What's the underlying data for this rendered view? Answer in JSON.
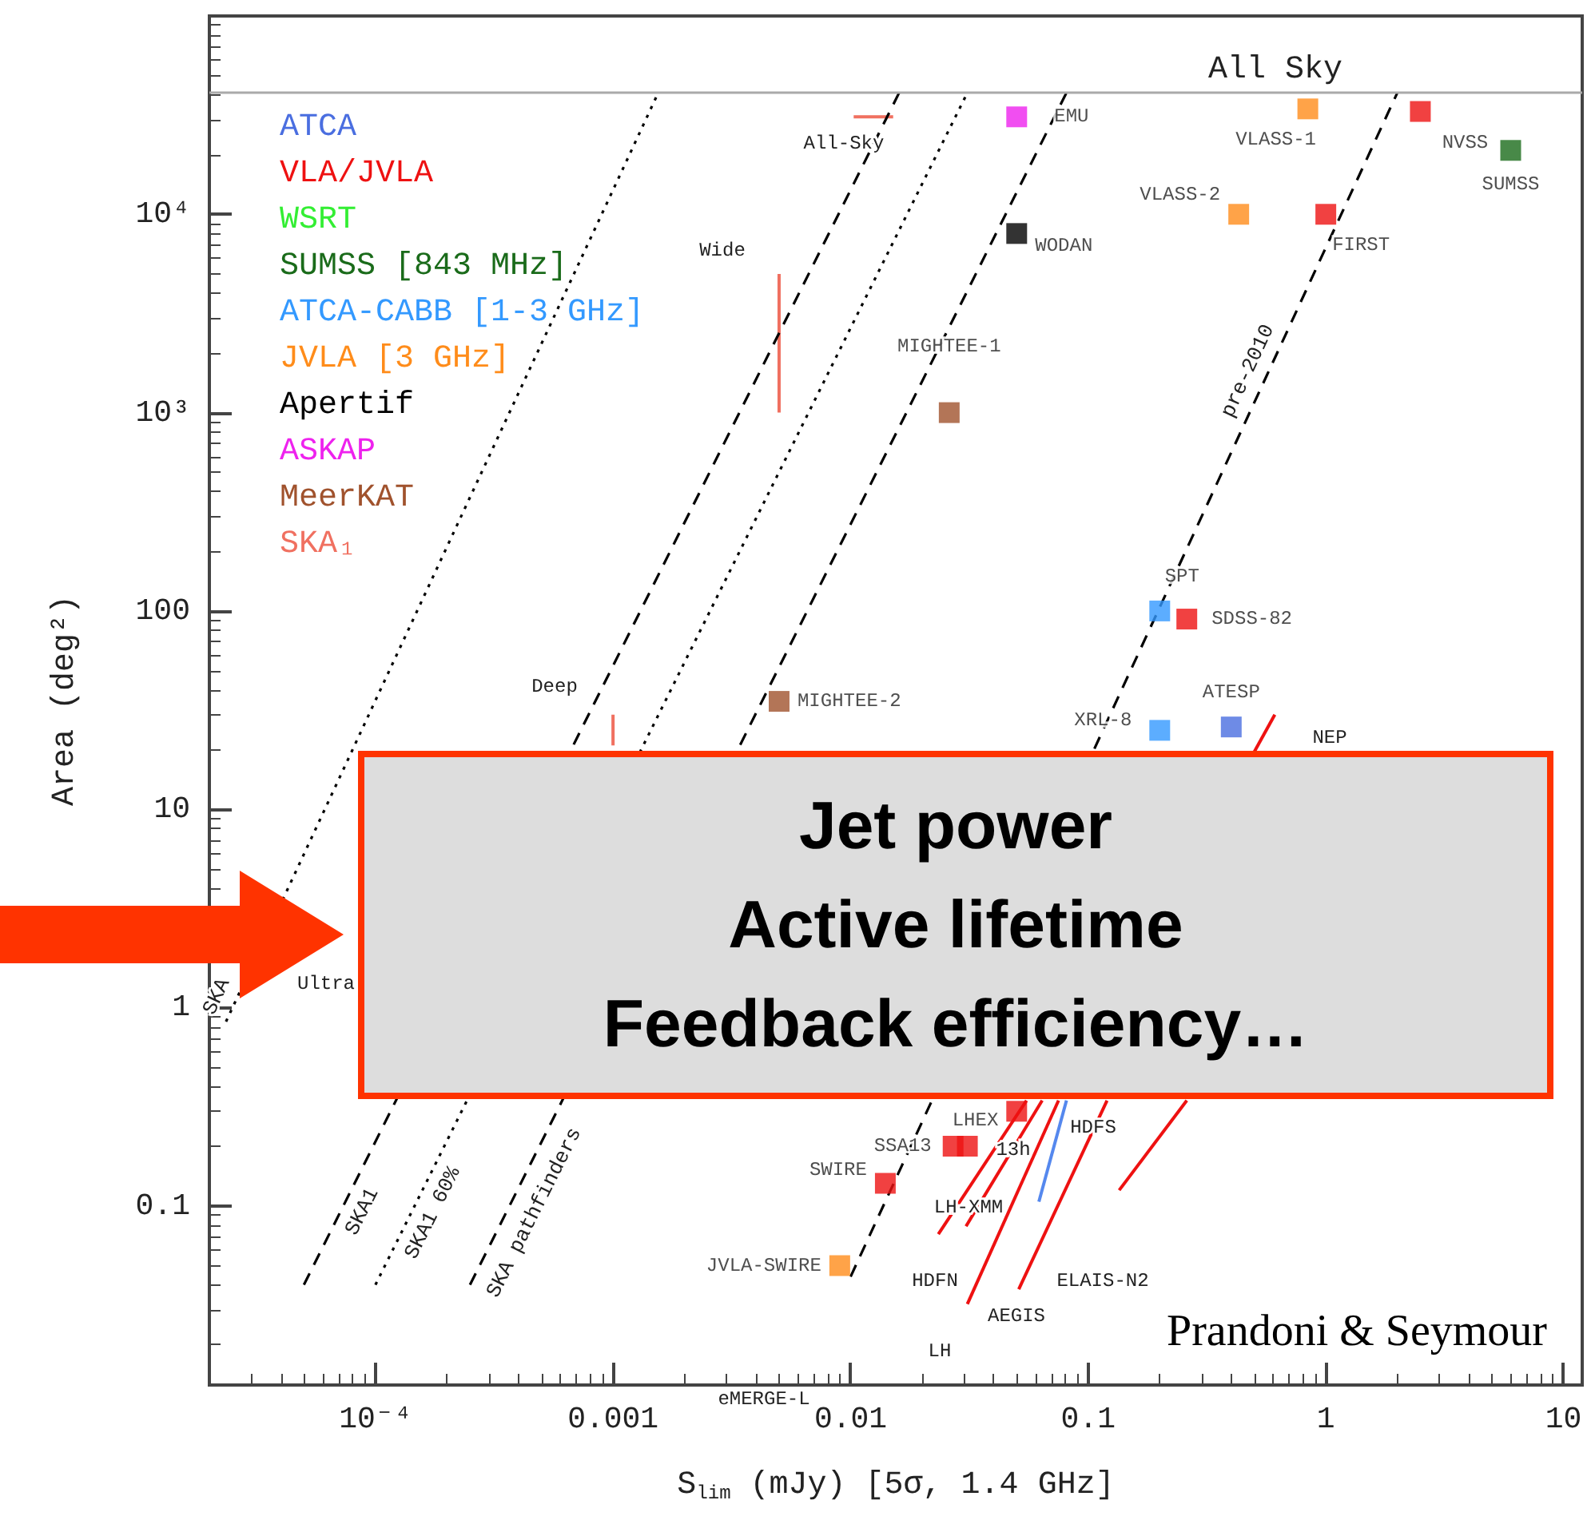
{
  "chart_data": {
    "type": "scatter",
    "xlabel": "S$_{lim}$ (mJy) [5σ, 1.4 GHz]",
    "ylabel": "Area (deg²)",
    "xlim": [
      2e-05,
      12
    ],
    "ylim": [
      0.0125,
      100000
    ],
    "xticks": [
      {
        "value": 0.0001,
        "label": "10⁻⁴"
      },
      0.001,
      0.01,
      0.1,
      1,
      10
    ],
    "yticks": [
      0.1,
      1,
      10,
      100,
      {
        "value": 1000,
        "label": "10³"
      },
      {
        "value": 10000,
        "label": "10⁴"
      }
    ],
    "log": "xy",
    "grid": false,
    "legend": "top left",
    "marker": "square",
    "ref_lines": [
      {
        "axis": "y",
        "value": 41000,
        "label": "All Sky",
        "color": "#aaaaaa"
      }
    ],
    "series": [
      {
        "name": "ATCA",
        "color": "#4a6ee0",
        "x": [
          0.4
        ],
        "values": [
          26
        ],
        "value_labels": [
          "ATESP"
        ]
      },
      {
        "name": "VLA/JVLA",
        "color": "#ee1111",
        "x": [
          2.5,
          1,
          0.26,
          0.05,
          0.027,
          0.031,
          0.014
        ],
        "values": [
          33000,
          10000,
          91,
          0.3,
          0.2,
          0.2,
          0.13
        ],
        "value_labels": [
          "NVSS",
          "FIRST",
          "SDSS-82",
          "LHEX",
          "SSA13",
          null,
          "SWIRE"
        ]
      },
      {
        "name": "WSRT",
        "color": "#33ee33"
      },
      {
        "name": "SUMSS [843 MHz]",
        "color": "#1a6b1a",
        "x": [
          6
        ],
        "values": [
          21000
        ],
        "value_labels": [
          "SUMSS"
        ]
      },
      {
        "name": "ATCA-CABB [1-3 GHz]",
        "color": "#3399ff",
        "x": [
          0.2,
          0.2
        ],
        "values": [
          100,
          25
        ],
        "value_labels": [
          "SPT",
          "XRL-8"
        ]
      },
      {
        "name": "JVLA [3 GHz]",
        "color": "#ff8c1a",
        "x": [
          0.84,
          0.43,
          0.009
        ],
        "values": [
          34000,
          10000,
          0.05
        ],
        "value_labels": [
          "VLASS-1",
          "VLASS-2",
          "JVLA-SWIRE"
        ]
      },
      {
        "name": "Apertif",
        "color": "#000000",
        "x": [
          0.05
        ],
        "values": [
          8000
        ],
        "value_labels": [
          "WODAN"
        ]
      },
      {
        "name": "ASKAP",
        "color": "#ee22ee",
        "x": [
          0.05
        ],
        "values": [
          31000
        ],
        "value_labels": [
          "EMU"
        ]
      },
      {
        "name": "MeerKAT",
        "color": "#a0522d",
        "x": [
          0.026,
          0.005
        ],
        "values": [
          1000,
          35
        ],
        "value_labels": [
          "MIGHTEE-1",
          "MIGHTEE-2"
        ]
      },
      {
        "name": "SKA₁",
        "type": "line",
        "marker": "none",
        "color": "#f07060",
        "x": [
          0.005,
          0.005,
          null,
          0.001,
          0.001,
          null,
          0.0103,
          0.0151
        ],
        "values": [
          1000,
          5000,
          null,
          21,
          30,
          null,
          31000,
          31000
        ]
      },
      {
        "name": "SKA",
        "type": "line",
        "marker": "none",
        "line_style": "dotted",
        "color": "#000000",
        "x": [
          2.35e-05,
          0.00155
        ],
        "values": [
          0.85,
          41000
        ]
      },
      {
        "name": "SKA1",
        "type": "line",
        "marker": "none",
        "line_style": "dashed",
        "color": "#000000",
        "x": [
          5e-05,
          0.016
        ],
        "values": [
          0.04,
          41000
        ]
      },
      {
        "name": "SKA1 60%",
        "type": "line",
        "marker": "none",
        "line_style": "dotted",
        "color": "#000000",
        "x": [
          0.0001,
          0.031
        ],
        "values": [
          0.04,
          41000
        ]
      },
      {
        "name": "SKA pathfinders",
        "type": "line",
        "marker": "none",
        "line_style": "dashed",
        "color": "#000000",
        "x": [
          0.00025,
          0.081
        ],
        "values": [
          0.04,
          41000
        ]
      },
      {
        "name": "pre-2010",
        "type": "line",
        "marker": "none",
        "line_style": "dashed",
        "color": "#000000",
        "x": [
          0.01,
          2.0
        ],
        "values": [
          0.044,
          41000
        ]
      },
      {
        "type": "line",
        "marker": "none",
        "color": "#ee1111",
        "x": [
          0.0234,
          0.055
        ],
        "values": [
          0.072,
          0.34
        ]
      },
      {
        "type": "line",
        "marker": "none",
        "color": "#ee1111",
        "x": [
          0.0306,
          0.064
        ],
        "values": [
          0.079,
          0.34
        ]
      },
      {
        "type": "line",
        "marker": "none",
        "color": "#ee1111",
        "x": [
          0.031,
          0.075
        ],
        "values": [
          0.032,
          0.34
        ]
      },
      {
        "type": "line",
        "marker": "none",
        "color": "#ee1111",
        "x": [
          0.051,
          0.12
        ],
        "values": [
          0.038,
          0.34
        ]
      },
      {
        "type": "line",
        "marker": "none",
        "color": "#ee1111",
        "x": [
          0.135,
          0.26
        ],
        "values": [
          0.12,
          0.34
        ]
      },
      {
        "type": "line",
        "marker": "none",
        "color": "#5588ee",
        "x": [
          0.062,
          0.081
        ],
        "values": [
          0.105,
          0.34
        ]
      },
      {
        "type": "line",
        "marker": "none",
        "color": "#ee1111",
        "x": [
          0.5,
          0.61
        ],
        "values": [
          19.5,
          30
        ]
      }
    ],
    "annotations": [
      "Jet power\nActive lifetime\nFeedback efficiency…",
      "Prandoni & Seymour",
      "All-Sky",
      "Wide",
      "Deep",
      "Ultra",
      "NEP",
      "LH-XMM",
      "HDFS",
      "HDFN",
      "ELAIS-N2",
      "AEGIS",
      "LH",
      "eMERGE-L",
      "13h"
    ]
  }
}
